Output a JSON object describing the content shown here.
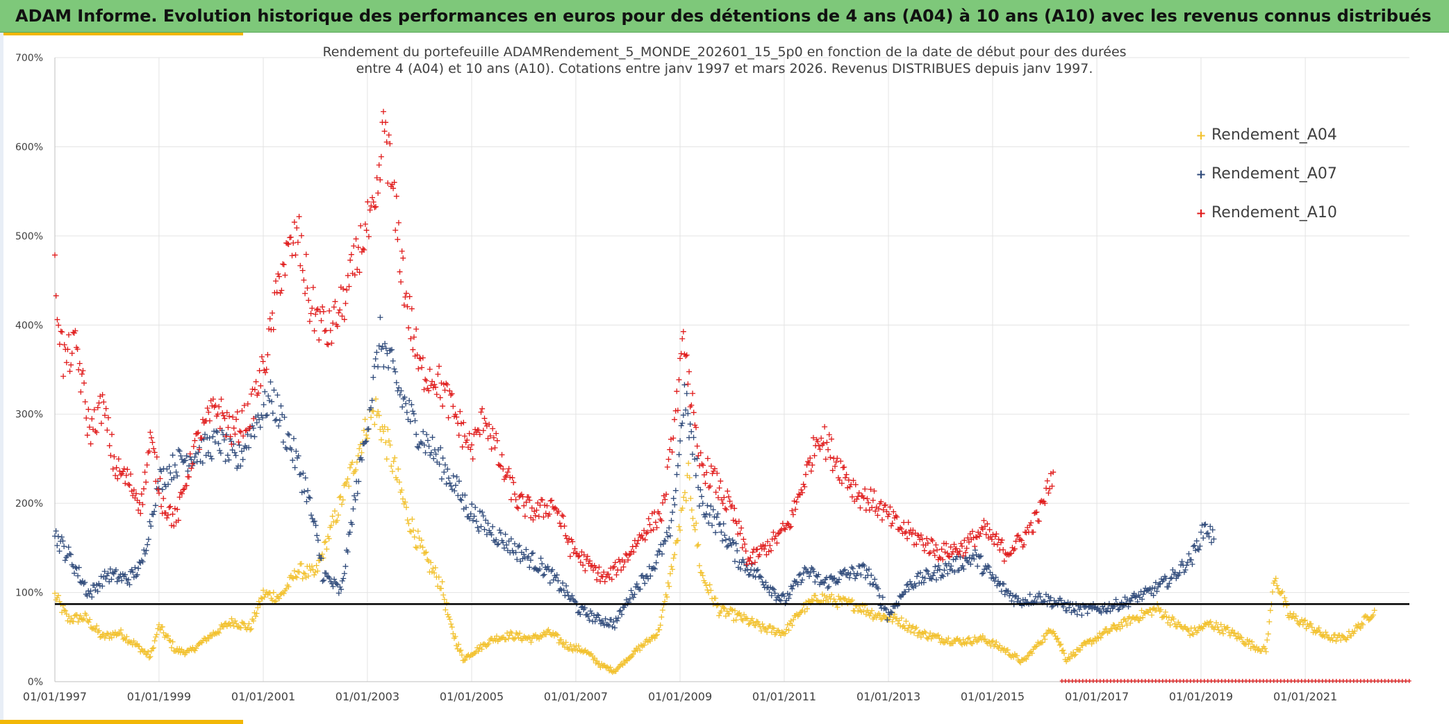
{
  "banner": {
    "title": "ADAM Informe. Evolution historique des performances en euros pour des détentions de 4 ans (A04) à 10 ans (A10) avec les revenus connus distribués"
  },
  "colors": {
    "banner_bg": "#7ec87a",
    "accent": "#f2b705",
    "a04": "#f2c12e",
    "a07": "#2f4a7a",
    "a10": "#e01a1a",
    "reference_line": "#000000",
    "grid": "#e3e3e3"
  },
  "chart_data": {
    "type": "scatter",
    "title_lines": [
      "Rendement du portefeuille ADAMRendement_5_MONDE_202601_15_5p0  en fonction de la date de début pour des durées",
      "entre 4 (A04) et 10 ans (A10). Cotations entre janv 1997 et mars 2026. Revenus DISTRIBUES depuis janv 1997."
    ],
    "x_axis": {
      "type": "date",
      "range": [
        "1997-01-01",
        "2023-01-01"
      ],
      "tick_labels": [
        "01/01/1997",
        "01/01/1999",
        "01/01/2001",
        "01/01/2003",
        "01/01/2005",
        "01/01/2007",
        "01/01/2009",
        "01/01/2011",
        "01/01/2013",
        "01/01/2015",
        "01/01/2017",
        "01/01/2019",
        "01/01/2021"
      ]
    },
    "y_axis": {
      "range": [
        0,
        700
      ],
      "unit": "%",
      "tick_labels": [
        "0%",
        "100%",
        "200%",
        "300%",
        "400%",
        "500%",
        "600%",
        "700%"
      ],
      "tick_values": [
        0,
        100,
        200,
        300,
        400,
        500,
        600,
        700
      ]
    },
    "grid": true,
    "legend_position": "top-right",
    "marker": "+",
    "reference_line_y": 87,
    "series": [
      {
        "name": "Rendement_A04",
        "color": "#f2c12e",
        "range": [
          "1997-01-01",
          "2022-05-01"
        ],
        "points": [
          [
            "1997-01-01",
            97
          ],
          [
            "1997-04-01",
            70
          ],
          [
            "1997-08-01",
            72
          ],
          [
            "1997-12-01",
            50
          ],
          [
            "1998-04-01",
            55
          ],
          [
            "1998-08-01",
            40
          ],
          [
            "1998-11-01",
            28
          ],
          [
            "1999-01-01",
            62
          ],
          [
            "1999-05-01",
            35
          ],
          [
            "1999-08-01",
            33
          ],
          [
            "2000-01-01",
            52
          ],
          [
            "2000-06-01",
            68
          ],
          [
            "2000-10-01",
            60
          ],
          [
            "2001-01-01",
            98
          ],
          [
            "2001-05-01",
            95
          ],
          [
            "2001-09-01",
            125
          ],
          [
            "2002-01-01",
            120
          ],
          [
            "2002-05-01",
            175
          ],
          [
            "2002-09-01",
            230
          ],
          [
            "2003-01-01",
            290
          ],
          [
            "2003-03-01",
            305
          ],
          [
            "2003-06-01",
            260
          ],
          [
            "2003-10-01",
            190
          ],
          [
            "2004-02-01",
            140
          ],
          [
            "2004-06-01",
            110
          ],
          [
            "2004-08-01",
            65
          ],
          [
            "2004-11-01",
            25
          ],
          [
            "2005-02-01",
            35
          ],
          [
            "2005-06-01",
            48
          ],
          [
            "2005-10-01",
            52
          ],
          [
            "2006-03-01",
            48
          ],
          [
            "2006-07-01",
            55
          ],
          [
            "2006-11-01",
            40
          ],
          [
            "2007-03-01",
            35
          ],
          [
            "2007-07-01",
            18
          ],
          [
            "2007-10-01",
            12
          ],
          [
            "2008-03-01",
            35
          ],
          [
            "2008-08-01",
            55
          ],
          [
            "2008-10-01",
            100
          ],
          [
            "2009-01-01",
            175
          ],
          [
            "2009-03-01",
            230
          ],
          [
            "2009-06-01",
            120
          ],
          [
            "2009-10-01",
            80
          ],
          [
            "2010-03-01",
            72
          ],
          [
            "2010-08-01",
            60
          ],
          [
            "2011-01-01",
            55
          ],
          [
            "2011-05-01",
            80
          ],
          [
            "2011-09-01",
            95
          ],
          [
            "2012-01-01",
            90
          ],
          [
            "2012-06-01",
            85
          ],
          [
            "2012-10-01",
            75
          ],
          [
            "2013-03-01",
            70
          ],
          [
            "2013-08-01",
            55
          ],
          [
            "2014-01-01",
            48
          ],
          [
            "2014-06-01",
            45
          ],
          [
            "2014-11-01",
            48
          ],
          [
            "2015-04-01",
            35
          ],
          [
            "2015-08-01",
            22
          ],
          [
            "2015-12-01",
            45
          ],
          [
            "2016-03-01",
            60
          ],
          [
            "2016-06-01",
            25
          ],
          [
            "2016-10-01",
            40
          ],
          [
            "2017-03-01",
            55
          ],
          [
            "2017-09-01",
            70
          ],
          [
            "2018-03-01",
            82
          ],
          [
            "2018-07-01",
            65
          ],
          [
            "2018-11-01",
            55
          ],
          [
            "2019-03-01",
            65
          ],
          [
            "2019-08-01",
            55
          ],
          [
            "2020-01-01",
            40
          ],
          [
            "2020-04-01",
            35
          ],
          [
            "2020-06-01",
            120
          ],
          [
            "2020-09-01",
            75
          ],
          [
            "2021-01-01",
            65
          ],
          [
            "2021-06-01",
            50
          ],
          [
            "2021-10-01",
            48
          ],
          [
            "2022-02-01",
            65
          ],
          [
            "2022-05-01",
            80
          ]
        ]
      },
      {
        "name": "Rendement_A07",
        "color": "#2f4a7a",
        "range": [
          "1997-01-01",
          "2019-04-01"
        ],
        "points": [
          [
            "1997-01-01",
            165
          ],
          [
            "1997-05-01",
            135
          ],
          [
            "1997-09-01",
            98
          ],
          [
            "1998-01-01",
            120
          ],
          [
            "1998-06-01",
            115
          ],
          [
            "1998-09-01",
            130
          ],
          [
            "1999-01-01",
            225
          ],
          [
            "1999-05-01",
            245
          ],
          [
            "1999-09-01",
            255
          ],
          [
            "2000-03-01",
            270
          ],
          [
            "2000-07-01",
            245
          ],
          [
            "2000-11-01",
            290
          ],
          [
            "2001-03-01",
            320
          ],
          [
            "2001-07-01",
            270
          ],
          [
            "2001-11-01",
            215
          ],
          [
            "2002-03-01",
            120
          ],
          [
            "2002-07-01",
            100
          ],
          [
            "2002-10-01",
            200
          ],
          [
            "2003-01-01",
            290
          ],
          [
            "2003-04-01",
            385
          ],
          [
            "2003-08-01",
            330
          ],
          [
            "2003-12-01",
            285
          ],
          [
            "2004-04-01",
            260
          ],
          [
            "2004-08-01",
            230
          ],
          [
            "2004-12-01",
            195
          ],
          [
            "2005-04-01",
            175
          ],
          [
            "2005-08-01",
            160
          ],
          [
            "2005-12-01",
            145
          ],
          [
            "2006-05-01",
            130
          ],
          [
            "2006-10-01",
            105
          ],
          [
            "2007-02-01",
            80
          ],
          [
            "2007-06-01",
            70
          ],
          [
            "2007-10-01",
            65
          ],
          [
            "2008-02-01",
            100
          ],
          [
            "2008-07-01",
            130
          ],
          [
            "2008-11-01",
            170
          ],
          [
            "2009-02-01",
            320
          ],
          [
            "2009-06-01",
            200
          ],
          [
            "2009-10-01",
            175
          ],
          [
            "2010-03-01",
            135
          ],
          [
            "2010-08-01",
            115
          ],
          [
            "2011-01-01",
            90
          ],
          [
            "2011-06-01",
            125
          ],
          [
            "2011-10-01",
            110
          ],
          [
            "2012-03-01",
            120
          ],
          [
            "2012-08-01",
            125
          ],
          [
            "2013-01-01",
            75
          ],
          [
            "2013-06-01",
            110
          ],
          [
            "2013-11-01",
            120
          ],
          [
            "2014-04-01",
            130
          ],
          [
            "2014-09-01",
            140
          ],
          [
            "2015-02-01",
            110
          ],
          [
            "2015-07-01",
            90
          ],
          [
            "2015-12-01",
            95
          ],
          [
            "2016-04-01",
            88
          ],
          [
            "2016-09-01",
            80
          ],
          [
            "2017-02-01",
            82
          ],
          [
            "2017-07-01",
            88
          ],
          [
            "2018-01-01",
            100
          ],
          [
            "2018-06-01",
            115
          ],
          [
            "2018-11-01",
            140
          ],
          [
            "2019-02-01",
            175
          ],
          [
            "2019-04-01",
            160
          ]
        ]
      },
      {
        "name": "Rendement_A10",
        "color": "#e01a1a",
        "range": [
          "1997-01-01",
          "2016-03-01"
        ],
        "points": [
          [
            "1997-01-01",
            455
          ],
          [
            "1997-03-01",
            360
          ],
          [
            "1997-06-01",
            375
          ],
          [
            "1997-09-01",
            280
          ],
          [
            "1997-12-01",
            310
          ],
          [
            "1998-03-01",
            240
          ],
          [
            "1998-06-01",
            225
          ],
          [
            "1998-09-01",
            200
          ],
          [
            "1998-11-01",
            270
          ],
          [
            "1999-02-01",
            200
          ],
          [
            "1999-05-01",
            180
          ],
          [
            "1999-09-01",
            260
          ],
          [
            "2000-02-01",
            310
          ],
          [
            "2000-06-01",
            280
          ],
          [
            "2000-10-01",
            300
          ],
          [
            "2001-02-01",
            370
          ],
          [
            "2001-05-01",
            460
          ],
          [
            "2001-09-01",
            500
          ],
          [
            "2001-12-01",
            420
          ],
          [
            "2002-04-01",
            390
          ],
          [
            "2002-08-01",
            430
          ],
          [
            "2002-12-01",
            500
          ],
          [
            "2003-03-01",
            520
          ],
          [
            "2003-05-01",
            630
          ],
          [
            "2003-07-01",
            540
          ],
          [
            "2003-10-01",
            430
          ],
          [
            "2004-01-01",
            350
          ],
          [
            "2004-05-01",
            340
          ],
          [
            "2004-09-01",
            300
          ],
          [
            "2005-01-01",
            260
          ],
          [
            "2005-04-01",
            300
          ],
          [
            "2005-08-01",
            240
          ],
          [
            "2005-12-01",
            200
          ],
          [
            "2006-04-01",
            190
          ],
          [
            "2006-08-01",
            200
          ],
          [
            "2006-12-01",
            150
          ],
          [
            "2007-04-01",
            130
          ],
          [
            "2007-08-01",
            115
          ],
          [
            "2007-12-01",
            135
          ],
          [
            "2008-05-01",
            170
          ],
          [
            "2008-09-01",
            190
          ],
          [
            "2008-12-01",
            300
          ],
          [
            "2009-02-01",
            390
          ],
          [
            "2009-05-01",
            250
          ],
          [
            "2009-09-01",
            225
          ],
          [
            "2010-01-01",
            190
          ],
          [
            "2010-05-01",
            135
          ],
          [
            "2010-10-01",
            155
          ],
          [
            "2011-02-01",
            175
          ],
          [
            "2011-06-01",
            230
          ],
          [
            "2011-09-01",
            280
          ],
          [
            "2012-02-01",
            240
          ],
          [
            "2012-06-01",
            210
          ],
          [
            "2012-10-01",
            200
          ],
          [
            "2013-03-01",
            175
          ],
          [
            "2013-08-01",
            160
          ],
          [
            "2014-01-01",
            145
          ],
          [
            "2014-06-01",
            150
          ],
          [
            "2014-11-01",
            170
          ],
          [
            "2015-04-01",
            145
          ],
          [
            "2015-08-01",
            160
          ],
          [
            "2015-12-01",
            190
          ],
          [
            "2016-03-01",
            235
          ]
        ]
      }
    ]
  }
}
